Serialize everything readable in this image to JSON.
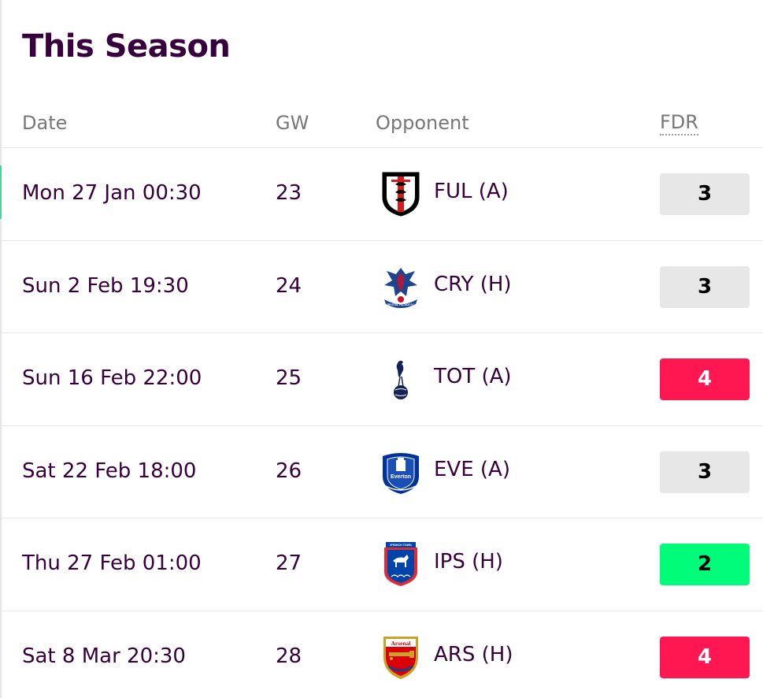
{
  "title": "This Season",
  "headers": {
    "date": "Date",
    "gw": "GW",
    "opponent": "Opponent",
    "fdr": "FDR"
  },
  "colors": {
    "fdr_2": {
      "bg": "#01fc7a",
      "fg": "#000000"
    },
    "fdr_3": {
      "bg": "#e7e7e7",
      "fg": "#000000"
    },
    "fdr_4": {
      "bg": "#ff1751",
      "fg": "#ffffff"
    }
  },
  "fixtures": [
    {
      "date": "Mon 27 Jan 00:30",
      "gw": "23",
      "opponent": "FUL (A)",
      "crest": "fulham-crest-icon",
      "fdr": "3"
    },
    {
      "date": "Sun 2 Feb 19:30",
      "gw": "24",
      "opponent": "CRY (H)",
      "crest": "crystal-palace-crest-icon",
      "fdr": "3"
    },
    {
      "date": "Sun 16 Feb 22:00",
      "gw": "25",
      "opponent": "TOT (A)",
      "crest": "tottenham-crest-icon",
      "fdr": "4"
    },
    {
      "date": "Sat 22 Feb 18:00",
      "gw": "26",
      "opponent": "EVE (A)",
      "crest": "everton-crest-icon",
      "fdr": "3"
    },
    {
      "date": "Thu 27 Feb 01:00",
      "gw": "27",
      "opponent": "IPS (H)",
      "crest": "ipswich-crest-icon",
      "fdr": "2"
    },
    {
      "date": "Sat 8 Mar 20:30",
      "gw": "28",
      "opponent": "ARS (H)",
      "crest": "arsenal-crest-icon",
      "fdr": "4"
    }
  ],
  "crest_text": {
    "crystal_palace": "CRYSTAL PALACE F.C.",
    "everton": "Everton",
    "ipswich": "IPSWICH TOWN",
    "arsenal": "Arsenal"
  }
}
